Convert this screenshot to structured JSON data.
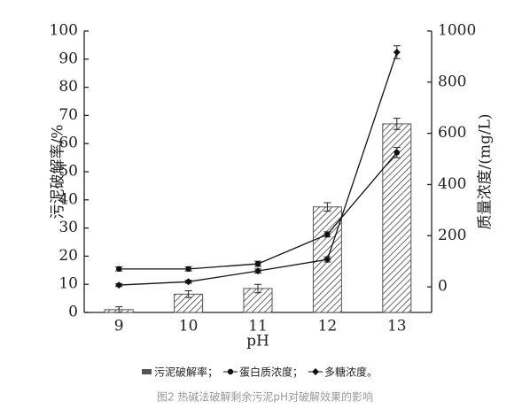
{
  "chart_data": {
    "type": "bar_line",
    "caption": "图2 热碱法破解剩余污泥pH对破解效果的影响",
    "xlabel": "pH",
    "ylabel": "污泥破解率/%",
    "y2label": "质量浓度/(mg/L)",
    "categories": [
      "9",
      "10",
      "11",
      "12",
      "13"
    ],
    "ylim": [
      0,
      100
    ],
    "yticks": [
      0,
      10,
      20,
      30,
      40,
      50,
      60,
      70,
      80,
      90,
      100
    ],
    "y2lim": [
      -100,
      1000
    ],
    "y2ticks": [
      0,
      200,
      400,
      600,
      800,
      1000
    ],
    "series": [
      {
        "name": "污泥破解率；",
        "kind": "bar",
        "color": "#555555",
        "values": [
          1,
          6.5,
          8.5,
          37.5,
          67
        ],
        "errors": [
          1,
          1.2,
          1.5,
          1.5,
          2
        ]
      },
      {
        "name": "蛋白质浓度；",
        "kind": "line",
        "marker": "circle",
        "axis": "y2",
        "color": "#111111",
        "values": [
          70,
          70,
          90,
          205,
          525
        ],
        "errors": [
          8,
          8,
          10,
          10,
          20
        ]
      },
      {
        "name": "多糖浓度。",
        "kind": "line",
        "marker": "diamond",
        "axis": "y2",
        "color": "#111111",
        "values": [
          7,
          20,
          62,
          107,
          917
        ],
        "errors": [
          6,
          6,
          8,
          10,
          25
        ]
      }
    ]
  }
}
